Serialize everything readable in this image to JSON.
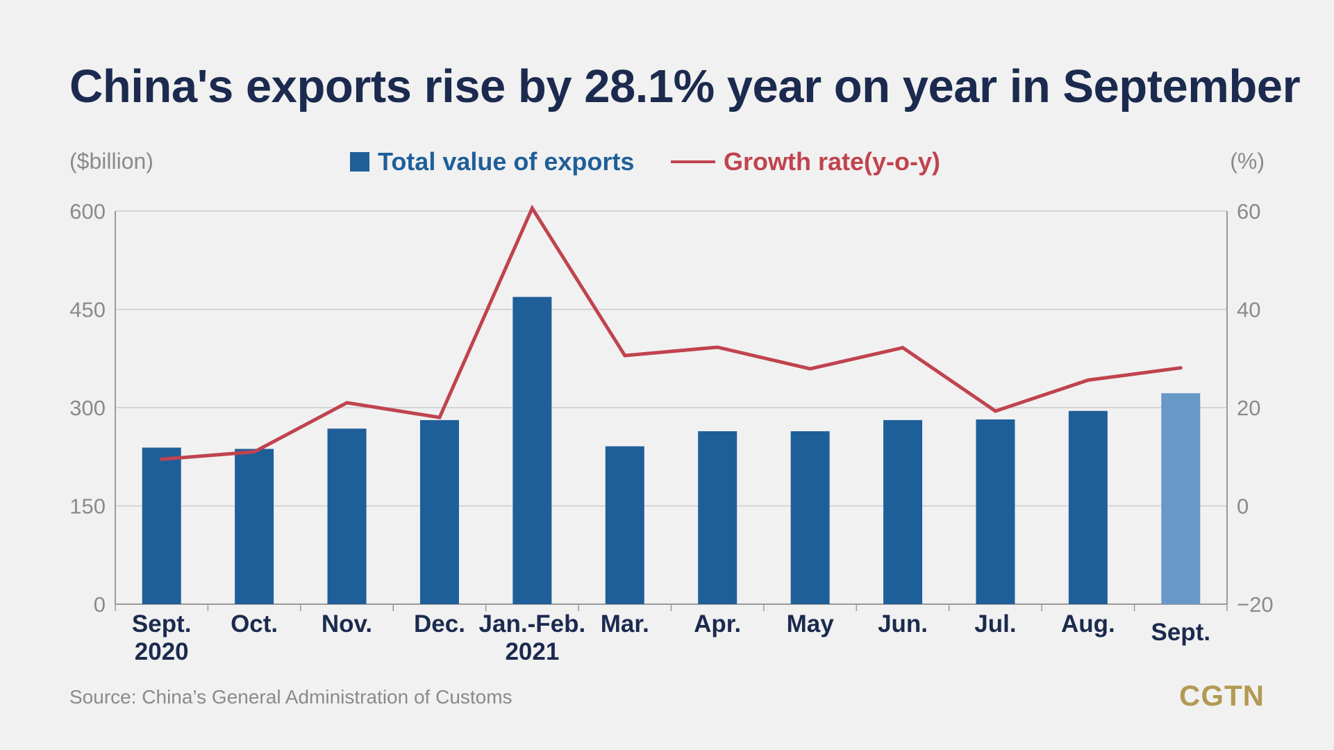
{
  "title": "China's exports rise by 28.1% year on year in September",
  "source": "Source: China’s General Administration of Customs",
  "logo": "CGTN",
  "colors": {
    "background": "#f1f1f1",
    "title": "#1b2a4e",
    "bar": "#1f5f99",
    "bar_highlight": "#6898c8",
    "line": "#c0434e",
    "axis_text": "#8a8a8a",
    "category_text": "#1b2a4e",
    "grid": "#cccccc",
    "logo": "#b29a53"
  },
  "chart_data": {
    "type": "bar",
    "categories": [
      "Sept.\n2020",
      "Oct.",
      "Nov.",
      "Dec.",
      "Jan.-Feb.\n2021",
      "Mar.",
      "Apr.",
      "May",
      "Jun.",
      "Jul.",
      "Aug.",
      "Sept."
    ],
    "series": [
      {
        "name": "Total value of exports",
        "type": "bar",
        "axis": "left",
        "values": [
          239,
          237,
          268,
          281,
          469,
          241,
          264,
          264,
          281,
          282,
          295,
          322
        ]
      },
      {
        "name": "Growth rate(y-o-y)",
        "type": "line",
        "axis": "right",
        "values": [
          9.5,
          11,
          21,
          18,
          60.6,
          30.6,
          32.3,
          27.9,
          32.2,
          19.3,
          25.6,
          28.1
        ]
      }
    ],
    "highlight_index": 11,
    "ylabel": "($billion)",
    "y2label": "(%)",
    "ylim": [
      0,
      600
    ],
    "y2lim": [
      -20,
      60
    ],
    "yticks": [
      "0",
      "150",
      "300",
      "450",
      "600"
    ],
    "y2ticks": [
      "−20",
      "0",
      "20",
      "40",
      "60"
    ],
    "grid": true,
    "legend_position": "top-center"
  }
}
